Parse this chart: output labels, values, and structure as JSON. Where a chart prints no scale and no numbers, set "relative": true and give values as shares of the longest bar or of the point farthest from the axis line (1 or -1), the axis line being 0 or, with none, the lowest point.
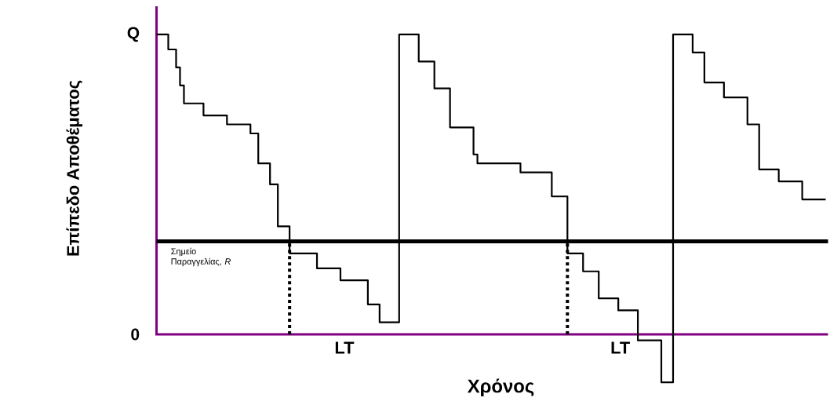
{
  "chart_data": {
    "type": "step",
    "relative": true,
    "color": "#000000",
    "xlabel": "Χρόνος",
    "ylabel": "Επίπεδο Αποθέματος",
    "categories": [
      null,
      null,
      null,
      null,
      null,
      null,
      null,
      null,
      null,
      null,
      null,
      null,
      null,
      null,
      null,
      null,
      null,
      null,
      null,
      null,
      null,
      null,
      null,
      null,
      null,
      null,
      null,
      null,
      null,
      null,
      null,
      null,
      null,
      null,
      null,
      null,
      null,
      null,
      null,
      null,
      null,
      null,
      null,
      null,
      null,
      null,
      null,
      null,
      null,
      null,
      null,
      null,
      null,
      null,
      null,
      null,
      null,
      null,
      null,
      null,
      null,
      null,
      null,
      null,
      null,
      null,
      null,
      null,
      null,
      null,
      null,
      null,
      null,
      null,
      null,
      null,
      null,
      null,
      null,
      null,
      null,
      null,
      null,
      null,
      null,
      null,
      null,
      null,
      null,
      null,
      null,
      null,
      null,
      null,
      null,
      null,
      null,
      null,
      null,
      null,
      null,
      null,
      null,
      null,
      null,
      null,
      null,
      null,
      null,
      null,
      null,
      null,
      null,
      null,
      null,
      null,
      null,
      null,
      null,
      null,
      null,
      null,
      null,
      null,
      null,
      null,
      null,
      null,
      null,
      null,
      null,
      null,
      null,
      null,
      null,
      null,
      null,
      null,
      null,
      null,
      null,
      null,
      null,
      null,
      null,
      null,
      null,
      null,
      null,
      null,
      null,
      null,
      null,
      null,
      null,
      null,
      null,
      null,
      null,
      null,
      null,
      null,
      null,
      null,
      null,
      null,
      null,
      null,
      null,
      null,
      null,
      null
    ],
    "values": [
      1.0,
      1.0,
      1.0,
      0.95,
      0.95,
      0.89,
      0.83,
      0.77,
      0.77,
      0.77,
      0.77,
      0.77,
      0.73,
      0.73,
      0.73,
      0.73,
      0.73,
      0.73,
      0.7,
      0.7,
      0.7,
      0.7,
      0.7,
      0.7,
      0.67,
      0.67,
      0.57,
      0.57,
      0.57,
      0.5,
      0.5,
      0.36,
      0.36,
      0.36,
      0.27,
      0.27,
      0.27,
      0.27,
      0.27,
      0.27,
      0.27,
      0.22,
      0.22,
      0.22,
      0.22,
      0.22,
      0.22,
      0.18,
      0.18,
      0.18,
      0.18,
      0.18,
      0.18,
      0.18,
      0.1,
      0.1,
      0.1,
      0.04,
      0.04,
      0.04,
      0.04,
      0.04,
      1.0,
      1.0,
      1.0,
      1.0,
      1.0,
      0.91,
      0.91,
      0.91,
      0.91,
      0.82,
      0.82,
      0.82,
      0.82,
      0.69,
      0.69,
      0.69,
      0.69,
      0.69,
      0.69,
      0.6,
      0.57,
      0.57,
      0.57,
      0.57,
      0.57,
      0.57,
      0.57,
      0.57,
      0.57,
      0.57,
      0.57,
      0.54,
      0.54,
      0.54,
      0.54,
      0.54,
      0.54,
      0.54,
      0.54,
      0.46,
      0.46,
      0.46,
      0.46,
      0.27,
      0.27,
      0.27,
      0.27,
      0.21,
      0.21,
      0.21,
      0.21,
      0.12,
      0.12,
      0.12,
      0.12,
      0.12,
      0.08,
      0.08,
      0.08,
      0.08,
      0.08,
      -0.02,
      -0.02,
      -0.02,
      -0.02,
      -0.02,
      -0.02,
      -0.16,
      -0.16,
      -0.16,
      1.0,
      1.0,
      1.0,
      1.0,
      1.0,
      0.94,
      0.94,
      0.94,
      0.84,
      0.84,
      0.84,
      0.84,
      0.84,
      0.79,
      0.79,
      0.79,
      0.79,
      0.79,
      0.79,
      0.7,
      0.7,
      0.7,
      0.55,
      0.55,
      0.55,
      0.55,
      0.55,
      0.51,
      0.51,
      0.51,
      0.51,
      0.51,
      0.51,
      0.45,
      0.45,
      0.45,
      0.45,
      0.45,
      0.45,
      0.45
    ],
    "ref_lines": [
      {
        "axis": "y",
        "value": 0.31,
        "label": "Σημείο Παραγγελίας, *R*",
        "color": "#000000"
      }
    ],
    "annotations": [
      "LT",
      "LT",
      "Q",
      "0"
    ]
  }
}
